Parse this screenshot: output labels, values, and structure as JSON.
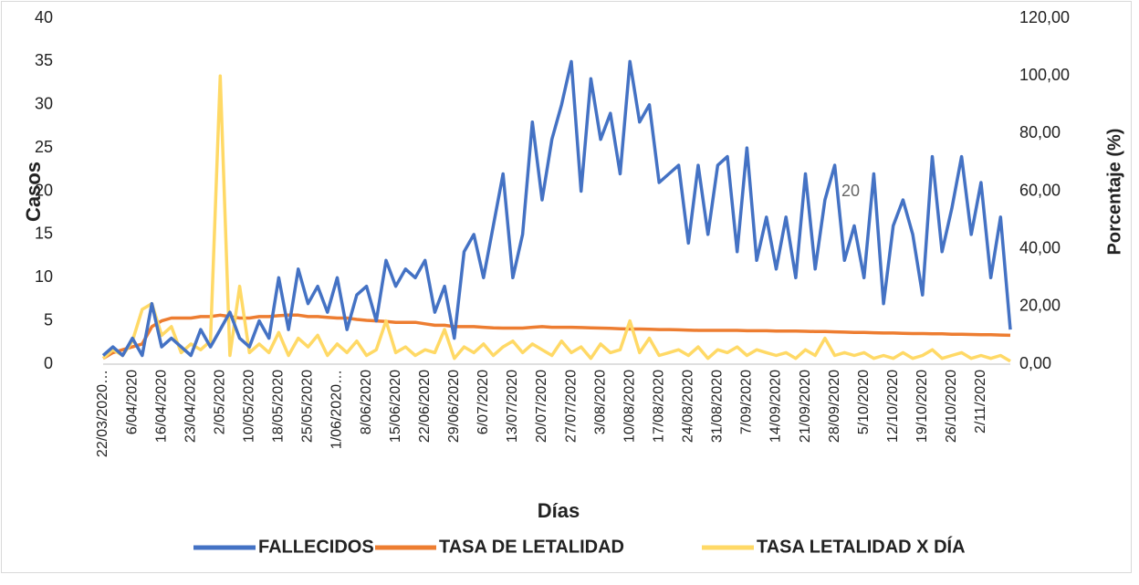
{
  "chart_data": {
    "type": "line",
    "xlabel": "Días",
    "ylabel": "Casos",
    "y2label": "Porcentaje (%)",
    "annotation": "20",
    "categories": [
      "22/03/2020…",
      null,
      null,
      "6/04/2020",
      null,
      null,
      "16/04/2020",
      null,
      null,
      "23/04/2020",
      null,
      null,
      "2/05/2020",
      null,
      null,
      "10/05/2020",
      null,
      null,
      "18/05/2020",
      null,
      null,
      "25/05/2020",
      null,
      null,
      "1/06/2020…",
      null,
      null,
      "8/06/2020",
      null,
      null,
      "15/06/2020",
      null,
      null,
      "22/06/2020",
      null,
      null,
      "29/06/2020",
      null,
      null,
      "6/07/2020",
      null,
      null,
      "13/07/2020",
      null,
      null,
      "20/07/2020",
      null,
      null,
      "27/07/2020",
      null,
      null,
      "3/08/2020",
      null,
      null,
      "10/08/2020",
      null,
      null,
      "17/08/2020",
      null,
      null,
      "24/08/2020",
      null,
      null,
      "31/08/2020",
      null,
      null,
      "7/09/2020",
      null,
      null,
      "14/09/2020",
      null,
      null,
      "21/09/2020",
      null,
      null,
      "28/09/2020",
      null,
      null,
      "5/10/2020",
      null,
      null,
      "12/10/2020",
      null,
      null,
      "19/10/2020",
      null,
      null,
      "26/10/2020",
      null,
      null,
      "2/11/2020",
      null,
      null,
      null
    ],
    "ylim": [
      0,
      40
    ],
    "yticks": [
      0,
      5,
      10,
      15,
      20,
      25,
      30,
      35,
      40
    ],
    "y2lim": [
      0,
      120
    ],
    "y2ticks": [
      {
        "value": 0,
        "label": "0,00"
      },
      {
        "value": 20,
        "label": "20,00"
      },
      {
        "value": 40,
        "label": "40,00"
      },
      {
        "value": 60,
        "label": "60,00"
      },
      {
        "value": 80,
        "label": "80,00"
      },
      {
        "value": 100,
        "label": "100,00"
      },
      {
        "value": 120,
        "label": "120,00"
      }
    ],
    "series": [
      {
        "name": "FALLECIDOS",
        "color": "#4472c4",
        "values": [
          1,
          2,
          1,
          3,
          1,
          7,
          2,
          3,
          2,
          1,
          4,
          2,
          4,
          6,
          3,
          2,
          5,
          3,
          10,
          4,
          11,
          7,
          9,
          6,
          10,
          4,
          8,
          9,
          5,
          12,
          9,
          11,
          10,
          12,
          6,
          9,
          3,
          13,
          15,
          10,
          16,
          22,
          10,
          15,
          28,
          19,
          26,
          30,
          35,
          20,
          33,
          26,
          29,
          22,
          35,
          28,
          30,
          21,
          22,
          23,
          14,
          23,
          15,
          23,
          24,
          13,
          25,
          12,
          17,
          11,
          17,
          10,
          22,
          11,
          19,
          23,
          12,
          16,
          10,
          22,
          7,
          16,
          19,
          15,
          8,
          24,
          13,
          18,
          24,
          15,
          21,
          10,
          17,
          4
        ]
      },
      {
        "name": "TASA DE LETALIDAD",
        "color": "#ed7d31",
        "axis": "y2",
        "values": [
          2,
          4,
          5,
          6,
          7,
          13,
          15,
          16,
          16,
          16,
          16.5,
          16.5,
          17,
          16.5,
          16,
          16,
          16.5,
          16.5,
          16.8,
          17,
          17,
          16.5,
          16.5,
          16.2,
          16,
          16,
          15.5,
          15.2,
          15,
          14.8,
          14.5,
          14.5,
          14.5,
          14,
          13.5,
          13.5,
          13,
          13,
          13,
          12.8,
          12.6,
          12.5,
          12.5,
          12.5,
          12.8,
          13,
          12.8,
          12.8,
          12.8,
          12.7,
          12.6,
          12.5,
          12.4,
          12.3,
          12.2,
          12.2,
          12.1,
          12,
          12,
          11.9,
          11.8,
          11.7,
          11.7,
          11.7,
          11.7,
          11.7,
          11.6,
          11.6,
          11.6,
          11.5,
          11.5,
          11.5,
          11.4,
          11.3,
          11.3,
          11.2,
          11.1,
          11,
          11,
          10.9,
          10.8,
          10.8,
          10.7,
          10.6,
          10.6,
          10.5,
          10.5,
          10.4,
          10.4,
          10.3,
          10.2,
          10.2,
          10.1,
          10
        ]
      },
      {
        "name": "TASA LETALIDAD X DÍA",
        "color": "#ffd966",
        "axis": "y2",
        "values": [
          2,
          5,
          3,
          8,
          19,
          21,
          10,
          13,
          4,
          7,
          5,
          8,
          100,
          3,
          27,
          4,
          7,
          4,
          11,
          3,
          9,
          6,
          10,
          3,
          7,
          4,
          8,
          3,
          5,
          15,
          4,
          6,
          3,
          5,
          4,
          12,
          2,
          6,
          4,
          7,
          3,
          6,
          8,
          4,
          7,
          5,
          3,
          8,
          4,
          6,
          2,
          7,
          4,
          5,
          15,
          4,
          9,
          3,
          4,
          5,
          3,
          6,
          2,
          5,
          4,
          6,
          3,
          5,
          4,
          3,
          4,
          2,
          5,
          3,
          9,
          3,
          4,
          3,
          4,
          2,
          3,
          2,
          4,
          2,
          3,
          5,
          2,
          3,
          4,
          2,
          3,
          2,
          3,
          1
        ]
      }
    ],
    "legend": "bottom"
  }
}
